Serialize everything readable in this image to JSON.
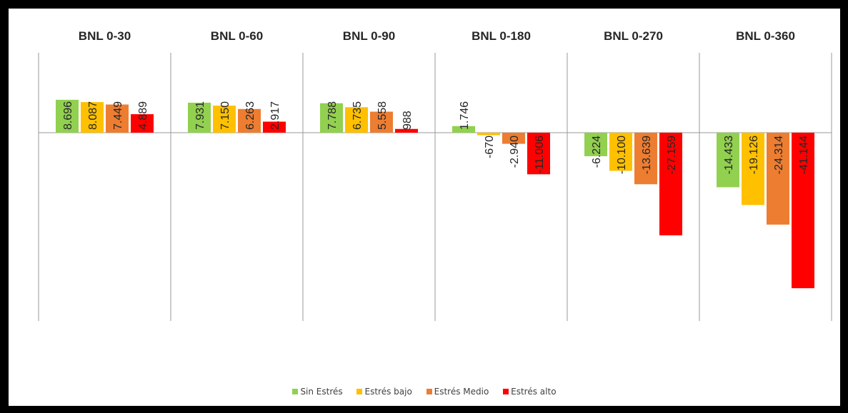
{
  "chart_data": {
    "type": "bar",
    "title": "",
    "xlabel": "",
    "ylabel": "",
    "ylim": [
      -50000,
      15000
    ],
    "grid": false,
    "legend_position": "bottom",
    "categories": [
      "BNL 0-30",
      "BNL 0-60",
      "BNL 0-90",
      "BNL 0-180",
      "BNL 0-270",
      "BNL 0-360"
    ],
    "series": [
      {
        "name": "Sin Estrés",
        "color": "#92D050",
        "values": [
          8696,
          7931,
          7788,
          1746,
          -6224,
          -14433
        ],
        "labels": [
          "8.696",
          "7.931",
          "7.788",
          "1.746",
          "-6.224",
          "-14.433"
        ]
      },
      {
        "name": "Estrés bajo",
        "color": "#FFC000",
        "values": [
          8087,
          7150,
          6735,
          -670,
          -10100,
          -19126
        ],
        "labels": [
          "8.087",
          "7.150",
          "6.735",
          "-670",
          "-10.100",
          "-19.126"
        ]
      },
      {
        "name": "Estrés Medio",
        "color": "#ED7D31",
        "values": [
          7449,
          6263,
          5558,
          -2940,
          -13639,
          -24314
        ],
        "labels": [
          "7.449",
          "6.263",
          "5.558",
          "-2.940",
          "-13.639",
          "-24.314"
        ]
      },
      {
        "name": "Estrés alto",
        "color": "#FF0000",
        "values": [
          4889,
          2917,
          988,
          -11006,
          -27159,
          -41144
        ],
        "labels": [
          "4.889",
          "2.917",
          "988",
          "-11.006",
          "-27.159",
          "-41.144"
        ]
      }
    ]
  }
}
